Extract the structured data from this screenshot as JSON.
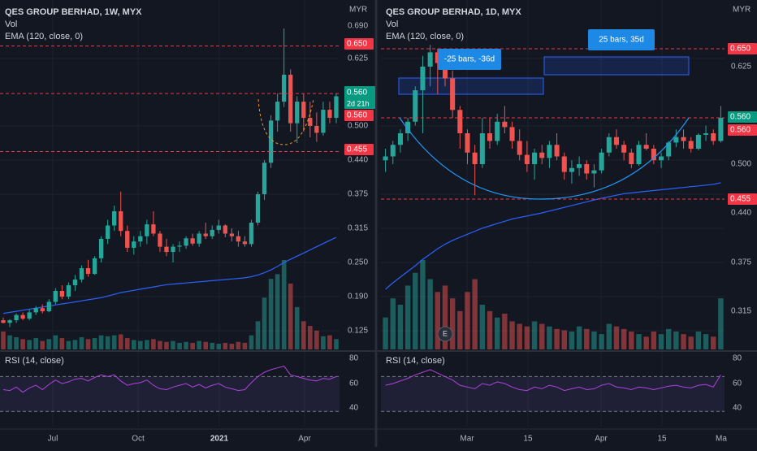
{
  "colors": {
    "bg": "#131722",
    "up": "#26a69a",
    "down": "#ef5350",
    "ema": "#2962ff",
    "rsi": "#b042e0",
    "badge_red": "#f23645",
    "badge_green": "#089981",
    "grid": "#1e222d",
    "axis_text": "#b2b5be",
    "box": "#2962ff"
  },
  "left": {
    "legend": {
      "title": "QES GROUP BERHAD, 1W, MYX",
      "vol": "Vol",
      "ema": "EMA (120, close, 0)"
    },
    "currency": "MYR",
    "price_ticks": [
      "0.690",
      "0.625",
      "0.500",
      "0.440",
      "0.375",
      "0.315",
      "0.250",
      "0.190",
      "0.125"
    ],
    "badges": {
      "p650": "0.650",
      "p560a": "0.560",
      "countdown": "2d 21h",
      "p560b": "0.560",
      "p455": "0.455"
    },
    "time_ticks": [
      "Jul",
      "Oct",
      "2021",
      "Apr"
    ],
    "rsi_label": "RSI (14, close)",
    "rsi_ticks": [
      "80",
      "60",
      "40"
    ]
  },
  "right": {
    "legend": {
      "title": "QES GROUP BERHAD, 1D, MYX",
      "vol": "Vol",
      "ema": "EMA (120, close, 0)"
    },
    "currency": "MYR",
    "price_ticks": [
      "0.625",
      "0.500",
      "0.440",
      "0.375",
      "0.315"
    ],
    "badges": {
      "p650": "0.650",
      "p560a": "0.560",
      "p560b": "0.560",
      "p455": "0.455"
    },
    "time_ticks": [
      "Mar",
      "15",
      "Apr",
      "15",
      "Ma"
    ],
    "rsi_label": "RSI (14, close)",
    "rsi_ticks": [
      "80",
      "60",
      "40"
    ],
    "annotations": {
      "range1": "-25 bars, -36d",
      "range2": "25 bars, 35d",
      "earnings": "E"
    }
  },
  "chart_data": [
    {
      "type": "candlestick",
      "title": "QES GROUP BERHAD, 1W, MYX",
      "ylabel": "MYR",
      "ylim": [
        0.1,
        0.7
      ],
      "horizontal_lines": [
        0.65,
        0.56,
        0.455
      ],
      "ohlc": [
        [
          0.145,
          0.15,
          0.139,
          0.14
        ],
        [
          0.14,
          0.147,
          0.132,
          0.145
        ],
        [
          0.145,
          0.158,
          0.14,
          0.155
        ],
        [
          0.155,
          0.16,
          0.145,
          0.148
        ],
        [
          0.148,
          0.165,
          0.145,
          0.16
        ],
        [
          0.16,
          0.172,
          0.155,
          0.168
        ],
        [
          0.168,
          0.175,
          0.158,
          0.162
        ],
        [
          0.162,
          0.185,
          0.16,
          0.18
        ],
        [
          0.18,
          0.205,
          0.175,
          0.2
        ],
        [
          0.2,
          0.21,
          0.185,
          0.19
        ],
        [
          0.19,
          0.215,
          0.185,
          0.21
        ],
        [
          0.21,
          0.228,
          0.2,
          0.22
        ],
        [
          0.22,
          0.245,
          0.215,
          0.24
        ],
        [
          0.24,
          0.255,
          0.225,
          0.23
        ],
        [
          0.23,
          0.262,
          0.228,
          0.258
        ],
        [
          0.258,
          0.3,
          0.25,
          0.295
        ],
        [
          0.295,
          0.33,
          0.285,
          0.32
        ],
        [
          0.32,
          0.355,
          0.31,
          0.345
        ],
        [
          0.345,
          0.38,
          0.3,
          0.31
        ],
        [
          0.31,
          0.32,
          0.27,
          0.278
        ],
        [
          0.278,
          0.3,
          0.265,
          0.29
        ],
        [
          0.29,
          0.31,
          0.28,
          0.3
        ],
        [
          0.3,
          0.33,
          0.285,
          0.322
        ],
        [
          0.322,
          0.345,
          0.3,
          0.305
        ],
        [
          0.305,
          0.31,
          0.27,
          0.28
        ],
        [
          0.28,
          0.295,
          0.262,
          0.27
        ],
        [
          0.27,
          0.285,
          0.25,
          0.28
        ],
        [
          0.28,
          0.29,
          0.27,
          0.282
        ],
        [
          0.282,
          0.3,
          0.276,
          0.296
        ],
        [
          0.296,
          0.305,
          0.282,
          0.286
        ],
        [
          0.286,
          0.31,
          0.28,
          0.305
        ],
        [
          0.305,
          0.325,
          0.295,
          0.3
        ],
        [
          0.3,
          0.32,
          0.295,
          0.312
        ],
        [
          0.312,
          0.33,
          0.305,
          0.32
        ],
        [
          0.32,
          0.322,
          0.298,
          0.305
        ],
        [
          0.305,
          0.315,
          0.29,
          0.3
        ],
        [
          0.3,
          0.31,
          0.28,
          0.29
        ],
        [
          0.29,
          0.3,
          0.28,
          0.285
        ],
        [
          0.285,
          0.33,
          0.28,
          0.325
        ],
        [
          0.325,
          0.38,
          0.32,
          0.375
        ],
        [
          0.375,
          0.44,
          0.365,
          0.435
        ],
        [
          0.435,
          0.52,
          0.425,
          0.51
        ],
        [
          0.51,
          0.56,
          0.49,
          0.545
        ],
        [
          0.545,
          0.685,
          0.535,
          0.595
        ],
        [
          0.595,
          0.605,
          0.49,
          0.505
        ],
        [
          0.505,
          0.555,
          0.47,
          0.545
        ],
        [
          0.545,
          0.56,
          0.49,
          0.515
        ],
        [
          0.515,
          0.545,
          0.48,
          0.5
        ],
        [
          0.5,
          0.525,
          0.472,
          0.488
        ],
        [
          0.488,
          0.545,
          0.483,
          0.53
        ],
        [
          0.53,
          0.545,
          0.505,
          0.515
        ],
        [
          0.515,
          0.56,
          0.505,
          0.555
        ]
      ],
      "volume": [
        38,
        30,
        26,
        22,
        20,
        24,
        18,
        22,
        30,
        24,
        18,
        20,
        26,
        22,
        24,
        30,
        28,
        30,
        32,
        24,
        20,
        18,
        20,
        22,
        18,
        16,
        18,
        14,
        16,
        14,
        18,
        16,
        14,
        12,
        14,
        12,
        16,
        14,
        30,
        60,
        110,
        150,
        160,
        190,
        140,
        90,
        60,
        50,
        40,
        28,
        30,
        22
      ],
      "ema": [
        0.158,
        0.16,
        0.162,
        0.164,
        0.166,
        0.168,
        0.17,
        0.172,
        0.174,
        0.176,
        0.178,
        0.18,
        0.182,
        0.184,
        0.186,
        0.188,
        0.191,
        0.194,
        0.197,
        0.199,
        0.201,
        0.203,
        0.205,
        0.207,
        0.209,
        0.211,
        0.212,
        0.213,
        0.214,
        0.215,
        0.216,
        0.217,
        0.218,
        0.219,
        0.22,
        0.221,
        0.222,
        0.223,
        0.225,
        0.228,
        0.232,
        0.237,
        0.243,
        0.25,
        0.256,
        0.262,
        0.268,
        0.274,
        0.28,
        0.286,
        0.292,
        0.298
      ],
      "rsi": [
        55,
        54,
        58,
        52,
        57,
        60,
        55,
        61,
        66,
        62,
        64,
        67,
        68,
        65,
        69,
        72,
        70,
        72,
        65,
        60,
        62,
        63,
        66,
        60,
        56,
        55,
        58,
        60,
        62,
        58,
        61,
        57,
        60,
        62,
        58,
        56,
        54,
        55,
        63,
        70,
        75,
        78,
        80,
        82,
        72,
        70,
        68,
        66,
        65,
        68,
        67,
        70
      ],
      "rsi_ylim": [
        20,
        90
      ],
      "rsi_levels": [
        70,
        30
      ]
    },
    {
      "type": "candlestick",
      "title": "QES GROUP BERHAD, 1D, MYX",
      "ylabel": "MYR",
      "ylim": [
        0.28,
        0.7
      ],
      "horizontal_lines": [
        0.65,
        0.56,
        0.455
      ],
      "ohlc": [
        [
          0.505,
          0.52,
          0.49,
          0.51
        ],
        [
          0.51,
          0.53,
          0.5,
          0.525
        ],
        [
          0.525,
          0.545,
          0.515,
          0.54
        ],
        [
          0.54,
          0.56,
          0.53,
          0.555
        ],
        [
          0.555,
          0.6,
          0.55,
          0.595
        ],
        [
          0.595,
          0.64,
          0.54,
          0.625
        ],
        [
          0.625,
          0.655,
          0.6,
          0.645
        ],
        [
          0.645,
          0.65,
          0.59,
          0.63
        ],
        [
          0.63,
          0.64,
          0.6,
          0.61
        ],
        [
          0.61,
          0.62,
          0.56,
          0.57
        ],
        [
          0.57,
          0.575,
          0.52,
          0.54
        ],
        [
          0.54,
          0.545,
          0.5,
          0.515
        ],
        [
          0.515,
          0.525,
          0.46,
          0.5
        ],
        [
          0.5,
          0.56,
          0.495,
          0.54
        ],
        [
          0.54,
          0.56,
          0.52,
          0.53
        ],
        [
          0.53,
          0.565,
          0.525,
          0.555
        ],
        [
          0.555,
          0.575,
          0.54,
          0.548
        ],
        [
          0.548,
          0.555,
          0.52,
          0.53
        ],
        [
          0.53,
          0.545,
          0.505,
          0.512
        ],
        [
          0.512,
          0.53,
          0.49,
          0.5
        ],
        [
          0.5,
          0.52,
          0.48,
          0.515
        ],
        [
          0.515,
          0.525,
          0.5,
          0.508
        ],
        [
          0.508,
          0.53,
          0.495,
          0.525
        ],
        [
          0.525,
          0.54,
          0.505,
          0.51
        ],
        [
          0.51,
          0.515,
          0.48,
          0.49
        ],
        [
          0.49,
          0.505,
          0.475,
          0.495
        ],
        [
          0.495,
          0.51,
          0.485,
          0.5
        ],
        [
          0.5,
          0.505,
          0.48,
          0.488
        ],
        [
          0.488,
          0.5,
          0.47,
          0.492
        ],
        [
          0.492,
          0.52,
          0.488,
          0.515
        ],
        [
          0.515,
          0.54,
          0.51,
          0.535
        ],
        [
          0.535,
          0.545,
          0.52,
          0.525
        ],
        [
          0.525,
          0.53,
          0.505,
          0.515
        ],
        [
          0.515,
          0.52,
          0.495,
          0.5
        ],
        [
          0.5,
          0.53,
          0.498,
          0.525
        ],
        [
          0.525,
          0.54,
          0.518,
          0.52
        ],
        [
          0.52,
          0.525,
          0.5,
          0.505
        ],
        [
          0.505,
          0.515,
          0.495,
          0.51
        ],
        [
          0.51,
          0.53,
          0.505,
          0.528
        ],
        [
          0.528,
          0.545,
          0.522,
          0.535
        ],
        [
          0.535,
          0.545,
          0.52,
          0.53
        ],
        [
          0.53,
          0.535,
          0.515,
          0.52
        ],
        [
          0.52,
          0.54,
          0.518,
          0.538
        ],
        [
          0.538,
          0.55,
          0.53,
          0.54
        ],
        [
          0.54,
          0.545,
          0.525,
          0.53
        ],
        [
          0.53,
          0.575,
          0.528,
          0.56
        ]
      ],
      "volume": [
        25,
        40,
        35,
        50,
        60,
        70,
        55,
        45,
        50,
        40,
        30,
        45,
        55,
        35,
        30,
        25,
        28,
        22,
        20,
        18,
        22,
        20,
        18,
        16,
        15,
        14,
        18,
        16,
        14,
        12,
        20,
        18,
        16,
        14,
        12,
        10,
        14,
        12,
        16,
        14,
        12,
        10,
        14,
        12,
        10,
        40
      ],
      "ema": [
        0.342,
        0.35,
        0.357,
        0.364,
        0.371,
        0.379,
        0.386,
        0.393,
        0.399,
        0.404,
        0.408,
        0.412,
        0.416,
        0.42,
        0.423,
        0.426,
        0.429,
        0.432,
        0.434,
        0.436,
        0.438,
        0.44,
        0.442,
        0.444,
        0.446,
        0.448,
        0.45,
        0.452,
        0.454,
        0.456,
        0.458,
        0.46,
        0.462,
        0.463,
        0.464,
        0.465,
        0.466,
        0.467,
        0.468,
        0.469,
        0.47,
        0.471,
        0.472,
        0.473,
        0.474,
        0.476
      ],
      "rsi": [
        60,
        62,
        65,
        68,
        72,
        75,
        78,
        74,
        70,
        66,
        60,
        58,
        56,
        62,
        60,
        64,
        62,
        58,
        55,
        54,
        58,
        56,
        60,
        58,
        54,
        56,
        58,
        55,
        56,
        60,
        62,
        58,
        57,
        55,
        58,
        57,
        55,
        57,
        59,
        60,
        58,
        57,
        60,
        61,
        58,
        72
      ],
      "rsi_ylim": [
        20,
        90
      ],
      "rsi_levels": [
        70,
        30
      ]
    }
  ]
}
